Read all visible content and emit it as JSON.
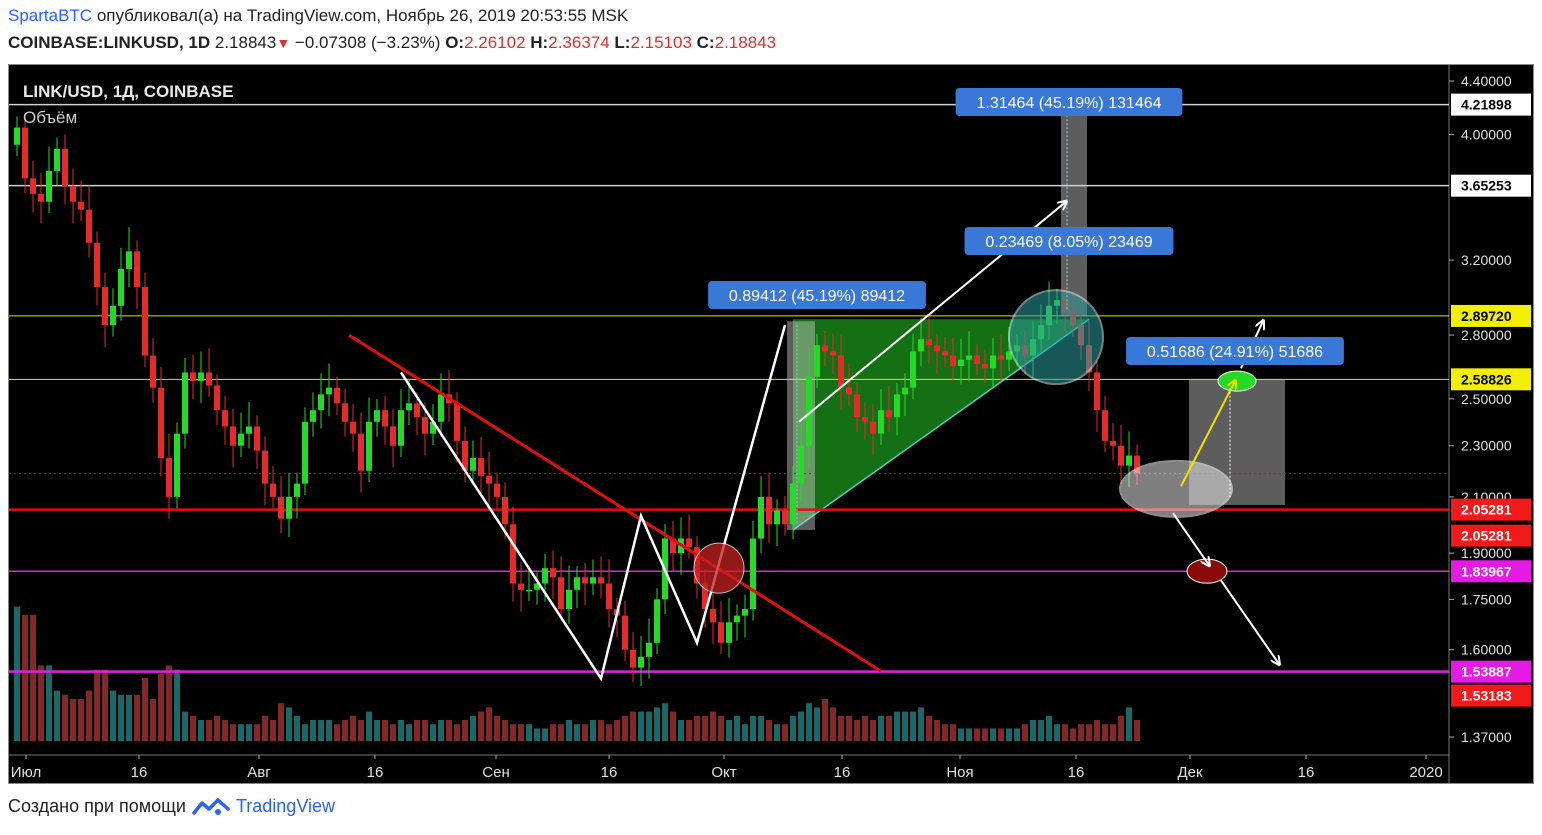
{
  "header": {
    "author": "SpartaBTC",
    "published_text": "опубликовал(а) на TradingView.com, Ноябрь 26, 2019 20:53:55 MSK",
    "symbol": "COINBASE:LINKUSD, 1D",
    "last": "2.18843",
    "change": "−0.07308 (−3.23%)",
    "o_label": "O:",
    "o": "2.26102",
    "h_label": "H:",
    "h": "2.36374",
    "l_label": "L:",
    "l": "2.15103",
    "c_label": "C:",
    "c": "2.18843"
  },
  "pane": {
    "title": "LINK/USD, 1Д, COINBASE",
    "volume_label": "Объём"
  },
  "footer": {
    "created_with": "Создано при помощи",
    "brand": "TradingView"
  },
  "colors": {
    "up": "#26d926",
    "down": "#e52a2a",
    "vol_up": "#1c6e6e",
    "vol_down": "#8a2a2a",
    "measure_box": "#3a78d8",
    "triangle_fill": "#1e9e1e",
    "support_red": "#e01010",
    "magenta": "#e020e0",
    "yellow": "#f0e000"
  },
  "chart_data": {
    "type": "candlestick",
    "x_ticks": [
      "Июл",
      "16",
      "Авг",
      "16",
      "Сен",
      "16",
      "Окт",
      "16",
      "Ноя",
      "16",
      "Дек",
      "16",
      "2020"
    ],
    "y_ticks": [
      "4.40000",
      "4.00000",
      "3.20000",
      "2.80000",
      "2.50000",
      "2.30000",
      "2.10000",
      "1.90000",
      "1.75000",
      "1.60000",
      "1.37000"
    ],
    "y_scale": "log",
    "ylim": [
      1.37,
      4.4
    ],
    "price_labels": [
      {
        "value": "4.21898",
        "style": "white"
      },
      {
        "value": "3.65253",
        "style": "white"
      },
      {
        "value": "2.89720",
        "style": "yellow"
      },
      {
        "value": "2.58826",
        "style": "yellow"
      },
      {
        "value": "2.05281",
        "style": "red"
      },
      {
        "value": "2.05281",
        "style": "red"
      },
      {
        "value": "1.83967",
        "style": "magenta"
      },
      {
        "value": "1.53887",
        "style": "magenta"
      },
      {
        "value": "1.53183",
        "style": "red"
      }
    ],
    "measure_labels": [
      "1.31464 (45.19%) 131464",
      "0.23469 (8.05%) 23469",
      "0.89412 (45.19%) 89412",
      "0.51686 (24.91%) 51686"
    ],
    "closes": [
      4.05,
      3.7,
      3.6,
      3.55,
      3.75,
      3.9,
      3.65,
      3.55,
      3.5,
      3.3,
      3.05,
      2.85,
      2.95,
      3.15,
      3.25,
      3.05,
      2.7,
      2.55,
      2.25,
      2.1,
      2.35,
      2.62,
      2.58,
      2.62,
      2.56,
      2.45,
      2.38,
      2.3,
      2.35,
      2.38,
      2.28,
      2.15,
      2.1,
      2.02,
      2.1,
      2.15,
      2.4,
      2.45,
      2.52,
      2.55,
      2.48,
      2.4,
      2.35,
      2.2,
      2.4,
      2.45,
      2.38,
      2.3,
      2.45,
      2.48,
      2.42,
      2.35,
      2.4,
      2.52,
      2.48,
      2.32,
      2.2,
      2.25,
      2.18,
      2.15,
      2.1,
      2.0,
      1.8,
      1.78,
      1.78,
      1.8,
      1.85,
      1.82,
      1.72,
      1.78,
      1.82,
      1.8,
      1.82,
      1.8,
      1.72,
      1.7,
      1.6,
      1.55,
      1.58,
      1.62,
      1.75,
      1.95,
      1.9,
      1.95,
      1.92,
      1.8,
      1.72,
      1.68,
      1.62,
      1.68,
      1.7,
      1.72,
      1.95,
      2.1,
      2.0,
      2.05,
      2.0,
      2.15,
      2.3,
      2.6,
      2.75,
      2.72,
      2.7,
      2.55,
      2.52,
      2.42,
      2.4,
      2.35,
      2.45,
      2.42,
      2.52,
      2.55,
      2.72,
      2.78,
      2.75,
      2.72,
      2.7,
      2.65,
      2.68,
      2.7,
      2.66,
      2.64,
      2.7,
      2.68,
      2.72,
      2.75,
      2.7,
      2.78,
      2.85,
      2.95,
      2.98,
      2.92,
      2.85,
      2.75,
      2.62,
      2.45,
      2.32,
      2.3,
      2.22,
      2.26,
      2.19
    ],
    "volumes": [
      0.32,
      0.3,
      0.3,
      0.18,
      0.18,
      0.12,
      0.11,
      0.1,
      0.1,
      0.12,
      0.17,
      0.17,
      0.12,
      0.11,
      0.11,
      0.11,
      0.15,
      0.1,
      0.16,
      0.18,
      0.17,
      0.07,
      0.06,
      0.05,
      0.05,
      0.06,
      0.05,
      0.04,
      0.04,
      0.04,
      0.04,
      0.06,
      0.05,
      0.09,
      0.08,
      0.06,
      0.04,
      0.05,
      0.05,
      0.05,
      0.04,
      0.05,
      0.06,
      0.05,
      0.07,
      0.05,
      0.05,
      0.04,
      0.05,
      0.04,
      0.05,
      0.05,
      0.04,
      0.05,
      0.05,
      0.04,
      0.05,
      0.06,
      0.07,
      0.08,
      0.06,
      0.05,
      0.04,
      0.04,
      0.04,
      0.03,
      0.03,
      0.04,
      0.04,
      0.05,
      0.04,
      0.04,
      0.05,
      0.05,
      0.04,
      0.05,
      0.06,
      0.07,
      0.07,
      0.07,
      0.08,
      0.09,
      0.07,
      0.05,
      0.05,
      0.06,
      0.06,
      0.07,
      0.06,
      0.05,
      0.06,
      0.04,
      0.06,
      0.06,
      0.05,
      0.04,
      0.04,
      0.06,
      0.07,
      0.09,
      0.08,
      0.1,
      0.08,
      0.06,
      0.06,
      0.05,
      0.06,
      0.05,
      0.06,
      0.06,
      0.07,
      0.07,
      0.07,
      0.08,
      0.06,
      0.05,
      0.04,
      0.04,
      0.03,
      0.03,
      0.03,
      0.03,
      0.03,
      0.03,
      0.03,
      0.03,
      0.04,
      0.05,
      0.05,
      0.06,
      0.04,
      0.04,
      0.03,
      0.04,
      0.04,
      0.05,
      0.04,
      0.04,
      0.06,
      0.08,
      0.05
    ]
  }
}
